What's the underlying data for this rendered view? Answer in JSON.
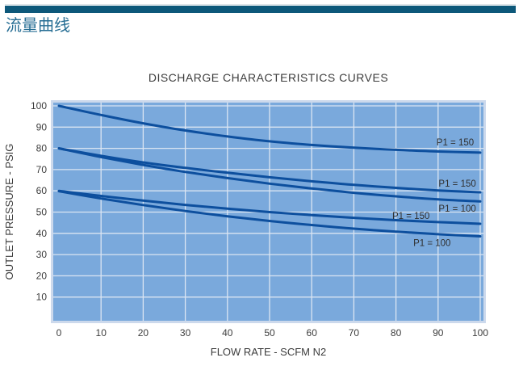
{
  "page": {
    "heading": "流量曲线",
    "accent_bar_color": "#0d587a",
    "heading_color": "#276e94"
  },
  "chart_data": {
    "type": "line",
    "title": "DISCHARGE CHARACTERISTICS CURVES",
    "xlabel": "FLOW RATE - SCFM N2",
    "ylabel": "OUTLET PRESSURE - PSIG",
    "xlim": [
      0,
      100
    ],
    "ylim": [
      0,
      100
    ],
    "xticks": [
      0,
      10,
      20,
      30,
      40,
      50,
      60,
      70,
      80,
      90,
      100
    ],
    "yticks": [
      10,
      20,
      30,
      40,
      50,
      60,
      70,
      80,
      90,
      100
    ],
    "grid": true,
    "legend_position": "inline-labels-right",
    "plot_bg_color": "#7aa9dc",
    "plot_border_color": "#ccd9ec",
    "grid_color": "#dbe5f2",
    "curve_color": "#0d4f9e",
    "text_color": "#3c3c3c",
    "x": [
      0,
      10,
      20,
      30,
      40,
      50,
      60,
      70,
      80,
      90,
      100
    ],
    "series": [
      {
        "label": "P1 = 150",
        "values": [
          100,
          95.7,
          91.8,
          88.4,
          85.6,
          83.3,
          81.6,
          80.3,
          79.3,
          78.5,
          78.0
        ],
        "label_x": 98.5,
        "label_y": 81.4
      },
      {
        "label": "P1 = 150",
        "values": [
          80,
          76.5,
          73.4,
          70.8,
          68.5,
          66.4,
          64.5,
          62.8,
          61.4,
          60.2,
          59.3
        ],
        "label_x": 99,
        "label_y": 62.0
      },
      {
        "label": "P1 = 100",
        "values": [
          80,
          75.9,
          72.2,
          68.9,
          66.0,
          63.4,
          61.1,
          59.1,
          57.4,
          56.0,
          55.0
        ],
        "label_x": 99,
        "label_y": 50.2
      },
      {
        "label": "P1 = 150",
        "values": [
          60,
          57.6,
          55.4,
          53.4,
          51.6,
          50.0,
          48.6,
          47.3,
          46.2,
          45.3,
          44.5
        ],
        "label_x": 88,
        "label_y": 46.8
      },
      {
        "label": "P1 = 100",
        "values": [
          59.8,
          56.4,
          53.3,
          50.5,
          48.0,
          45.8,
          43.9,
          42.2,
          40.8,
          39.6,
          38.6
        ],
        "label_x": 93,
        "label_y": 34.0
      }
    ]
  }
}
